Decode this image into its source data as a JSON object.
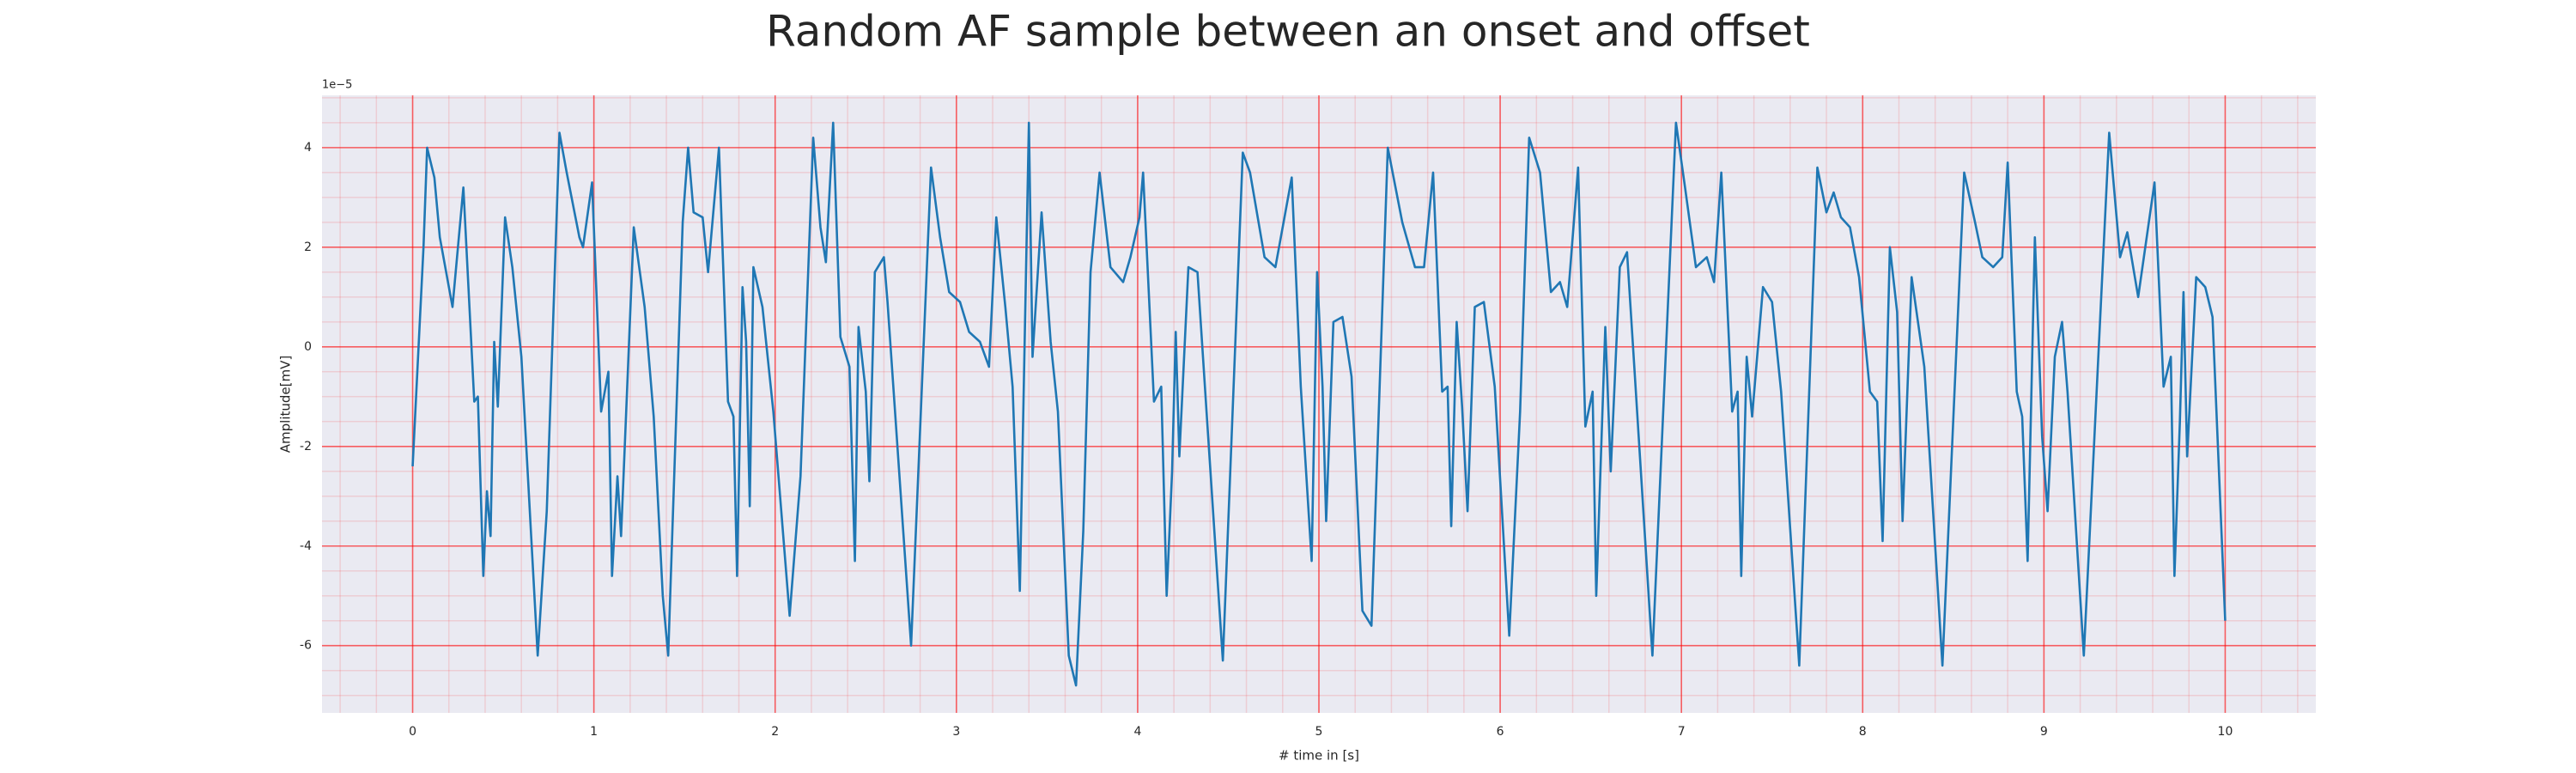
{
  "chart_data": {
    "type": "line",
    "title": "Random AF sample between an onset and offset",
    "xlabel": "# time in [s]",
    "ylabel": "Amplitude[mV]",
    "y_offset_label": "1e−5",
    "color": "#1f77b4",
    "background": "#eaeaf2",
    "grid": true,
    "grid_color": "#ff0000",
    "minor_grid": true,
    "xlim": [
      -0.5,
      10.5
    ],
    "ylim": [
      -7.35,
      5.05
    ],
    "xticks": [
      0,
      1,
      2,
      3,
      4,
      5,
      6,
      7,
      8,
      9,
      10
    ],
    "yticks": [
      -6,
      -4,
      -2,
      0,
      2,
      4
    ],
    "x": [
      0,
      0.06,
      0.08,
      0.12,
      0.15,
      0.22,
      0.28,
      0.34,
      0.36,
      0.39,
      0.41,
      0.43,
      0.45,
      0.47,
      0.51,
      0.55,
      0.6,
      0.69,
      0.74,
      0.81,
      0.85,
      0.92,
      0.94,
      0.99,
      1.04,
      1.08,
      1.1,
      1.13,
      1.15,
      1.22,
      1.28,
      1.33,
      1.38,
      1.41,
      1.49,
      1.52,
      1.55,
      1.6,
      1.63,
      1.69,
      1.74,
      1.77,
      1.79,
      1.82,
      1.84,
      1.86,
      1.88,
      1.93,
      1.99,
      2.08,
      2.14,
      2.21,
      2.25,
      2.28,
      2.32,
      2.36,
      2.41,
      2.44,
      2.46,
      2.5,
      2.52,
      2.55,
      2.6,
      2.62,
      2.75,
      2.86,
      2.91,
      2.96,
      3.02,
      3.07,
      3.13,
      3.18,
      3.22,
      3.27,
      3.31,
      3.35,
      3.4,
      3.42,
      3.47,
      3.52,
      3.56,
      3.62,
      3.66,
      3.7,
      3.74,
      3.79,
      3.85,
      3.92,
      3.96,
      4.01,
      4.03,
      4.09,
      4.13,
      4.16,
      4.19,
      4.21,
      4.23,
      4.28,
      4.33,
      4.38,
      4.47,
      4.58,
      4.62,
      4.7,
      4.76,
      4.85,
      4.9,
      4.96,
      4.99,
      5.02,
      5.04,
      5.08,
      5.13,
      5.18,
      5.24,
      5.29,
      5.38,
      5.46,
      5.53,
      5.58,
      5.63,
      5.68,
      5.71,
      5.73,
      5.76,
      5.79,
      5.82,
      5.86,
      5.91,
      5.97,
      6.05,
      6.11,
      6.16,
      6.22,
      6.28,
      6.33,
      6.37,
      6.43,
      6.47,
      6.51,
      6.53,
      6.58,
      6.61,
      6.66,
      6.7,
      6.74,
      6.84,
      6.97,
      7.02,
      7.08,
      7.14,
      7.18,
      7.22,
      7.28,
      7.31,
      7.33,
      7.36,
      7.39,
      7.45,
      7.5,
      7.55,
      7.65,
      7.75,
      7.8,
      7.84,
      7.88,
      7.93,
      7.98,
      8.04,
      8.08,
      8.11,
      8.15,
      8.19,
      8.22,
      8.27,
      8.34,
      8.44,
      8.56,
      8.62,
      8.66,
      8.72,
      8.77,
      8.8,
      8.85,
      8.88,
      8.91,
      8.95,
      8.99,
      9.02,
      9.06,
      9.1,
      9.13,
      9.22,
      9.36,
      9.42,
      9.46,
      9.52,
      9.61,
      9.66,
      9.7,
      9.72,
      9.75,
      9.77,
      9.79,
      9.84,
      9.89,
      9.93,
      10.0
    ],
    "values": [
      -2.4,
      2.0,
      4.0,
      3.4,
      2.2,
      0.8,
      3.2,
      -1.1,
      -1.0,
      -4.6,
      -2.9,
      -3.8,
      0.1,
      -1.2,
      2.6,
      1.6,
      -0.2,
      -6.2,
      -3.3,
      4.3,
      3.5,
      2.2,
      2.0,
      3.3,
      -1.3,
      -0.5,
      -4.6,
      -2.6,
      -3.8,
      2.4,
      0.8,
      -1.4,
      -5.0,
      -6.2,
      2.5,
      4.0,
      2.7,
      2.6,
      1.5,
      4.0,
      -1.1,
      -1.4,
      -4.6,
      1.2,
      0.1,
      -3.2,
      1.6,
      0.8,
      -1.3,
      -5.4,
      -2.6,
      4.2,
      2.4,
      1.7,
      4.5,
      0.2,
      -0.4,
      -4.3,
      0.4,
      -0.9,
      -2.7,
      1.5,
      1.8,
      0.9,
      -6.0,
      3.6,
      2.2,
      1.1,
      0.9,
      0.3,
      0.1,
      -0.4,
      2.6,
      0.8,
      -0.8,
      -4.9,
      4.5,
      -0.2,
      2.7,
      0.1,
      -1.3,
      -6.2,
      -6.8,
      -3.7,
      1.5,
      3.5,
      1.6,
      1.3,
      1.8,
      2.6,
      3.5,
      -1.1,
      -0.8,
      -5.0,
      -2.5,
      0.3,
      -2.2,
      1.6,
      1.5,
      -1.3,
      -6.3,
      3.9,
      3.5,
      1.8,
      1.6,
      3.4,
      -0.8,
      -4.3,
      1.5,
      -0.8,
      -3.5,
      0.5,
      0.6,
      -0.6,
      -5.3,
      -5.6,
      4.0,
      2.5,
      1.6,
      1.6,
      3.5,
      -0.9,
      -0.8,
      -3.6,
      0.5,
      -1.2,
      -3.3,
      0.8,
      0.9,
      -0.8,
      -5.8,
      -1.3,
      4.2,
      3.5,
      1.1,
      1.3,
      0.8,
      3.6,
      -1.6,
      -0.9,
      -5.0,
      0.4,
      -2.5,
      1.6,
      1.9,
      -0.4,
      -6.2,
      4.5,
      3.2,
      1.6,
      1.8,
      1.3,
      3.5,
      -1.3,
      -0.9,
      -4.6,
      -0.2,
      -1.4,
      1.2,
      0.9,
      -0.9,
      -6.4,
      3.6,
      2.7,
      3.1,
      2.6,
      2.4,
      1.4,
      -0.9,
      -1.1,
      -3.9,
      2.0,
      0.7,
      -3.5,
      1.4,
      -0.4,
      -6.4,
      3.5,
      2.5,
      1.8,
      1.6,
      1.8,
      3.7,
      -0.9,
      -1.4,
      -4.3,
      2.2,
      -1.8,
      -3.3,
      -0.2,
      0.5,
      -0.9,
      -6.2,
      4.3,
      1.8,
      2.3,
      1.0,
      3.3,
      -0.8,
      -0.2,
      -4.6,
      -1.5,
      1.1,
      -2.2,
      1.4,
      1.2,
      0.6,
      -5.5
    ]
  }
}
